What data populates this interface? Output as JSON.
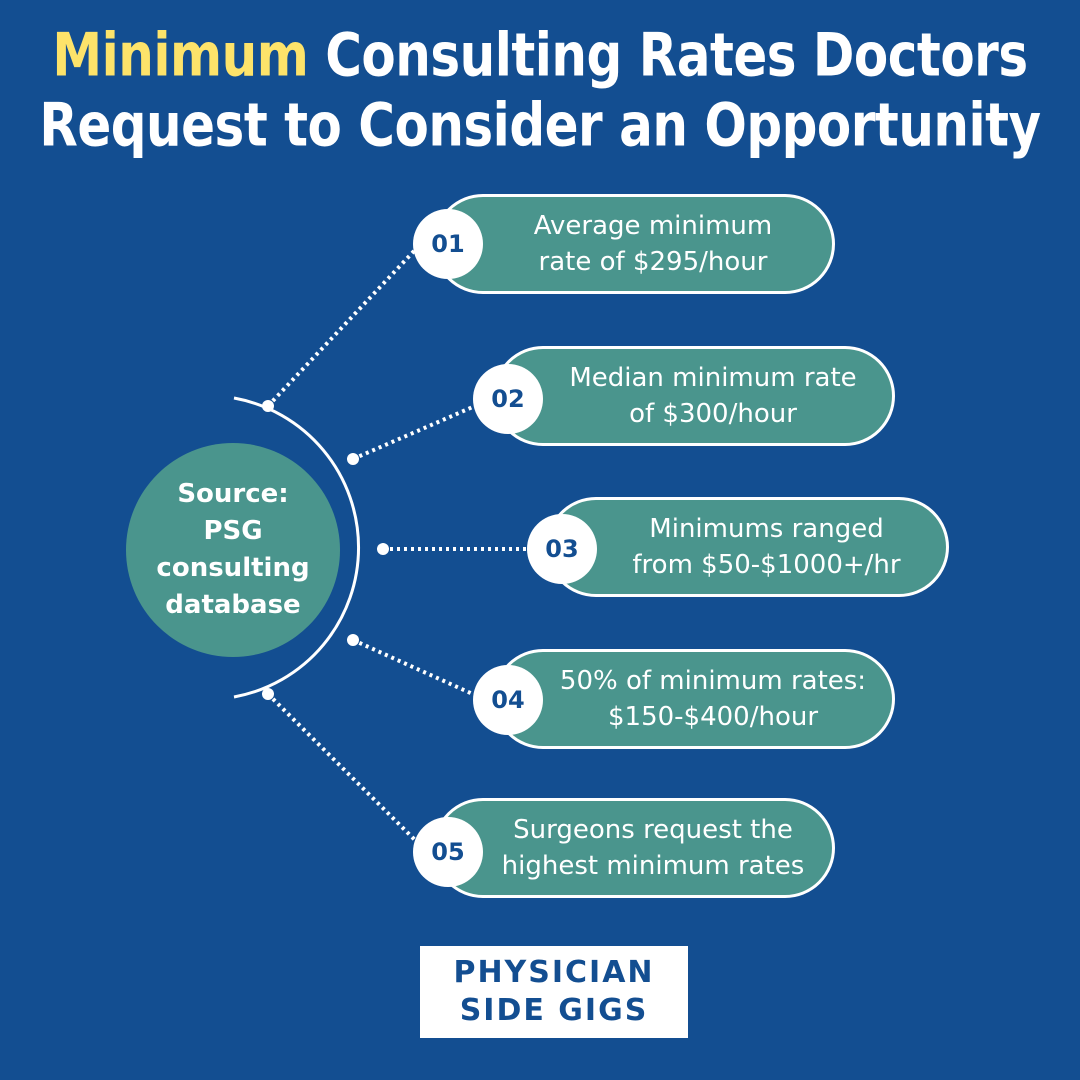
{
  "title": {
    "line1_highlight": "Minimum",
    "line1_rest": " Consulting Rates Doctors",
    "line2": "Request to Consider an Opportunity"
  },
  "source": {
    "lines": [
      "Source:",
      "PSG",
      "consulting",
      "database"
    ]
  },
  "items": [
    {
      "number": "01",
      "lines": [
        "Average minimum",
        "rate of $295/hour"
      ]
    },
    {
      "number": "02",
      "lines": [
        "Median minimum rate",
        "of $300/hour"
      ]
    },
    {
      "number": "03",
      "lines": [
        "Minimums ranged",
        "from $50-$1000+/hr"
      ]
    },
    {
      "number": "04",
      "lines": [
        "50% of minimum rates:",
        "$150-$400/hour"
      ]
    },
    {
      "number": "05",
      "lines": [
        "Surgeons request the",
        "highest minimum rates"
      ]
    }
  ],
  "logo": {
    "line1": "PHYSICIAN",
    "line2": "SIDE GIGS"
  },
  "colors": {
    "background": "#134e91",
    "accent_yellow": "#fde36a",
    "teal": "#4a958d",
    "white": "#ffffff"
  }
}
